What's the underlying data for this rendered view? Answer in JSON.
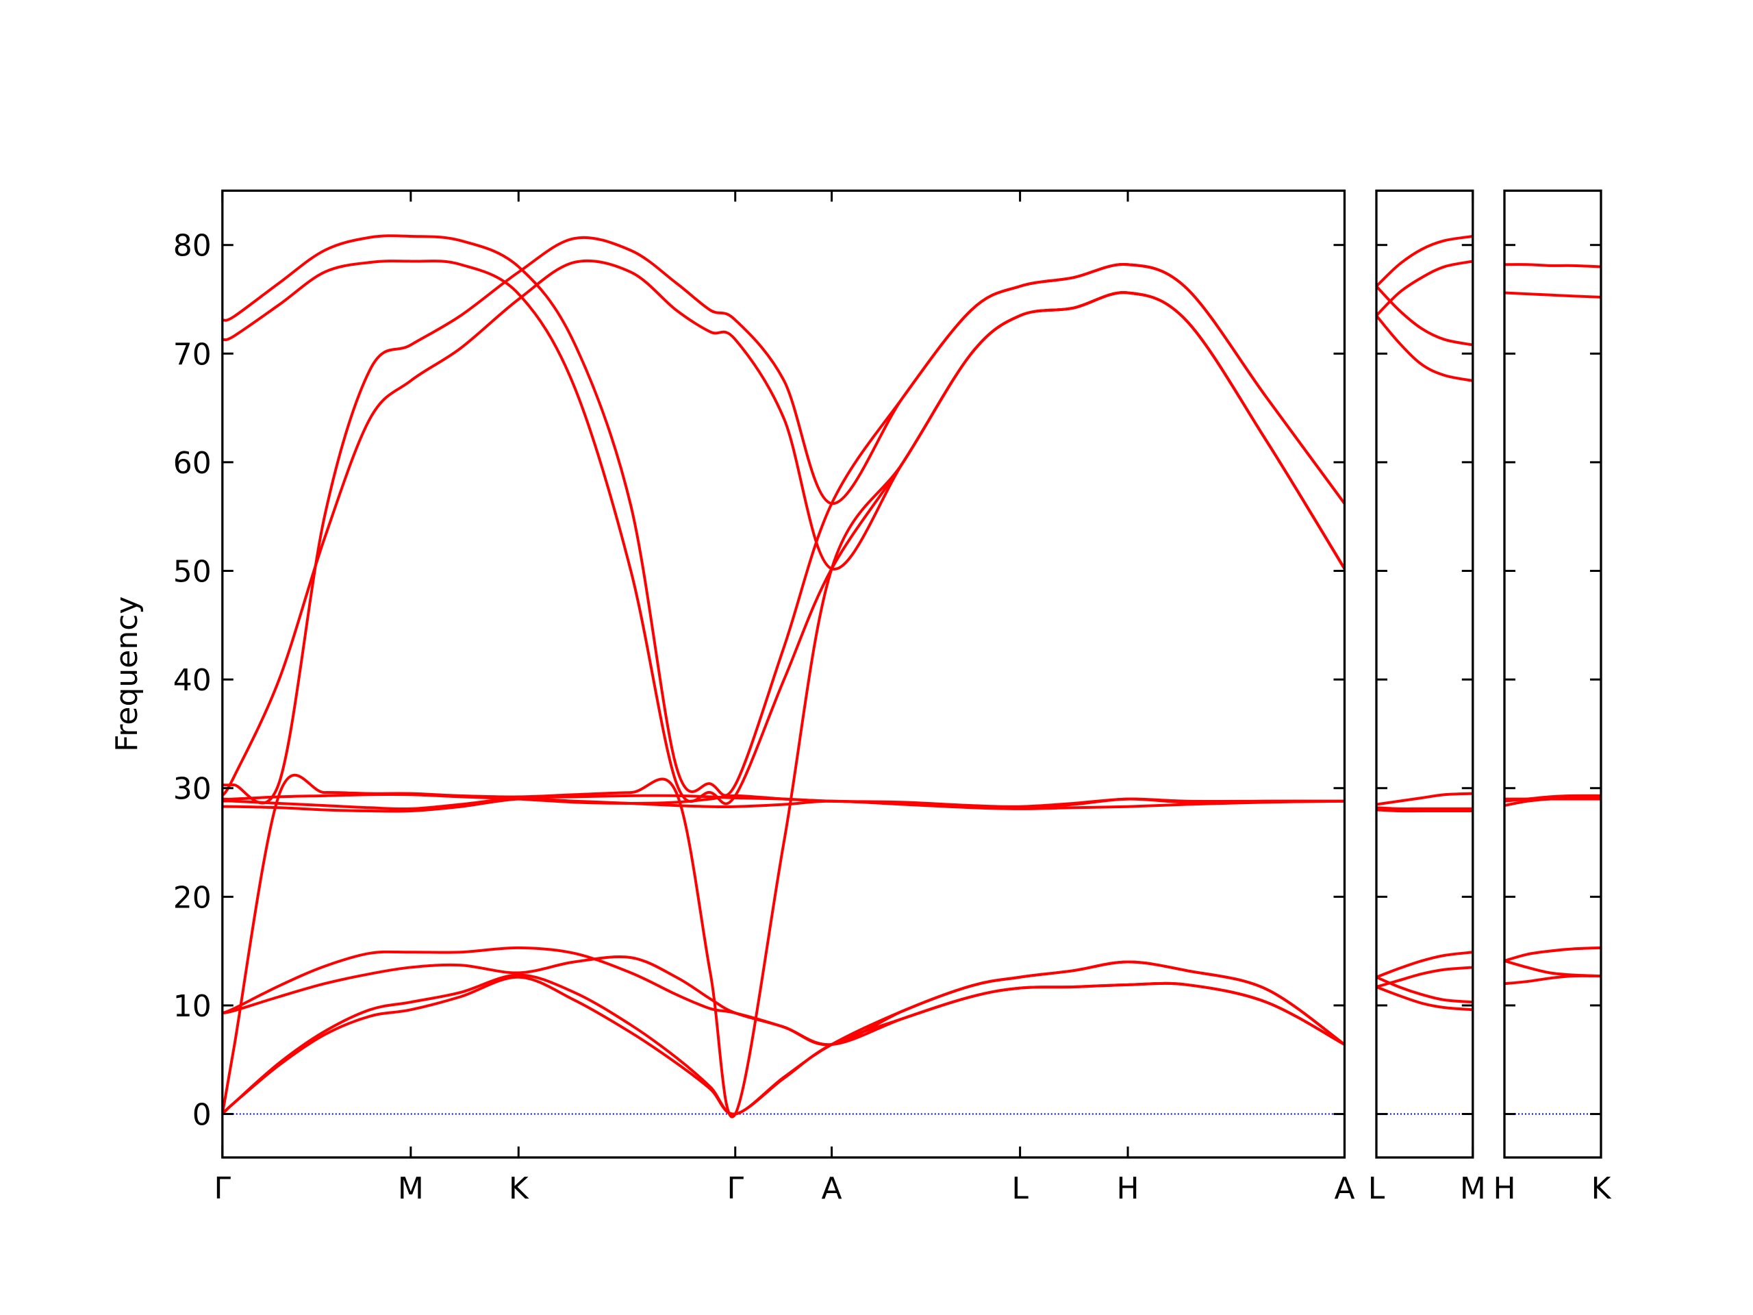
{
  "chart_data": [
    {
      "type": "line",
      "ylabel": "Frequency",
      "color": "#ff0000",
      "hline": 0,
      "hline_color": "#0000ff",
      "xlim": [
        0,
        0.989
      ],
      "ylim": [
        -4,
        85
      ],
      "xticks": [
        {
          "value": 0,
          "label": "Γ"
        },
        {
          "value": 0.166,
          "label": "M"
        },
        {
          "value": 0.261,
          "label": "K"
        },
        {
          "value": 0.452,
          "label": "Γ"
        },
        {
          "value": 0.537,
          "label": "A"
        },
        {
          "value": 0.703,
          "label": "L"
        },
        {
          "value": 0.798,
          "label": "H"
        },
        {
          "value": 0.989,
          "label": "A"
        }
      ],
      "yticks": [
        0,
        10,
        20,
        30,
        40,
        50,
        60,
        70,
        80
      ],
      "x": [
        0,
        0.01,
        0.05,
        0.09,
        0.13,
        0.166,
        0.21,
        0.261,
        0.31,
        0.36,
        0.4,
        0.43,
        0.452,
        0.495,
        0.537,
        0.6,
        0.66,
        0.703,
        0.75,
        0.798,
        0.85,
        0.92,
        0.989
      ],
      "series": [
        {
          "values": [
            30.3,
            30.3,
            30.5,
            55,
            68.5,
            70.8,
            73.5,
            77.5,
            80.6,
            79.5,
            76.5,
            74.0,
            73.1,
            67.5,
            56.2,
            66.0,
            74.0,
            76.2,
            77.0,
            78.2,
            76.0,
            66.0,
            56.2
          ]
        },
        {
          "values": [
            29.3,
            31,
            40,
            53,
            64,
            67.5,
            70.5,
            75,
            78.4,
            77.5,
            74,
            72,
            71.3,
            64,
            50.2,
            60,
            70,
            73.5,
            74.2,
            75.6,
            73,
            62,
            50.2
          ]
        },
        {
          "values": [
            73.1,
            73.4,
            76.5,
            79.5,
            80.7,
            80.8,
            80.4,
            78.0,
            71.0,
            56.0,
            32.0,
            30.4,
            30.3,
            43.0,
            56.2,
            66.0,
            74.0,
            76.2,
            77.0,
            78.2,
            76.0,
            66.0,
            56.2
          ]
        },
        {
          "values": [
            71.3,
            71.6,
            74.5,
            77.5,
            78.4,
            78.5,
            78.2,
            75.5,
            67.0,
            50.0,
            30.5,
            29.6,
            29.3,
            40,
            50.2,
            60,
            70,
            73.5,
            74.2,
            75.6,
            73,
            62,
            50.2
          ]
        },
        {
          "values": [
            0,
            6,
            29.4,
            29.6,
            29.5,
            29.5,
            29.3,
            29.2,
            29.4,
            29.6,
            29.6,
            13,
            0,
            25.1,
            50.2,
            60,
            70,
            73.5,
            74.2,
            75.6,
            73,
            62,
            50.2
          ]
        },
        {
          "values": [
            28.3,
            28.3,
            28.2,
            28.0,
            27.9,
            27.9,
            28.3,
            29.0,
            28.8,
            28.6,
            28.4,
            28.3,
            28.3,
            28.5,
            28.8,
            28.5,
            28.2,
            28.1,
            28.2,
            28.3,
            28.5,
            28.7,
            28.8
          ]
        },
        {
          "values": [
            28.8,
            28.8,
            28.6,
            28.4,
            28.2,
            28.1,
            28.5,
            29.1,
            29.2,
            29.3,
            29.3,
            29.2,
            29.1,
            29.0,
            28.8,
            28.7,
            28.4,
            28.3,
            28.6,
            29.0,
            28.8,
            28.8,
            28.8
          ]
        },
        {
          "values": [
            29.0,
            29.0,
            29.2,
            29.3,
            29.4,
            29.4,
            29.2,
            29.0,
            28.7,
            28.6,
            28.7,
            29.0,
            29.3,
            29.0,
            28.8,
            28.6,
            28.3,
            28.2,
            28.5,
            29.0,
            28.7,
            28.8,
            28.8
          ]
        },
        {
          "values": [
            0,
            1,
            4.5,
            7.3,
            9.0,
            9.6,
            10.8,
            12.6,
            10.5,
            7.5,
            4.7,
            2.3,
            0,
            3.3,
            6.4,
            8.8,
            10.8,
            11.6,
            11.7,
            11.9,
            11.9,
            10.3,
            6.4
          ]
        },
        {
          "values": [
            0,
            1,
            4.7,
            7.6,
            9.6,
            10.3,
            11.2,
            12.8,
            11.2,
            8.2,
            5.2,
            2.5,
            0,
            3.4,
            6.4,
            9.5,
            11.8,
            12.6,
            13.2,
            14.0,
            13.2,
            11.5,
            6.4
          ]
        },
        {
          "values": [
            9.3,
            9.5,
            10.8,
            12.0,
            12.9,
            13.5,
            13.7,
            13.0,
            14.0,
            14.4,
            12.6,
            10.6,
            9.3,
            8.0,
            6.4,
            8.8,
            10.8,
            11.6,
            11.7,
            11.9,
            11.9,
            10.3,
            6.4
          ]
        },
        {
          "values": [
            9.3,
            9.7,
            11.8,
            13.6,
            14.8,
            14.9,
            14.9,
            15.3,
            14.8,
            13.0,
            11.0,
            9.7,
            9.3,
            8.0,
            6.4,
            9.5,
            11.8,
            12.6,
            13.2,
            14.0,
            13.2,
            11.5,
            6.4
          ]
        }
      ]
    },
    {
      "type": "line",
      "color": "#ff0000",
      "hline": 0,
      "hline_color": "#0000ff",
      "xlim": [
        0,
        0.085
      ],
      "ylim": [
        -4,
        85
      ],
      "xticks": [
        {
          "value": 0,
          "label": "L"
        },
        {
          "value": 0.085,
          "label": "M"
        }
      ],
      "x": [
        0,
        0.02,
        0.04,
        0.06,
        0.085
      ],
      "series": [
        {
          "values": [
            76.2,
            78.2,
            79.6,
            80.4,
            80.8
          ]
        },
        {
          "values": [
            73.5,
            75.6,
            77.0,
            78.0,
            78.5
          ]
        },
        {
          "values": [
            76.2,
            74.0,
            72.3,
            71.3,
            70.8
          ]
        },
        {
          "values": [
            73.5,
            71.0,
            69.0,
            68.0,
            67.5
          ]
        },
        {
          "values": [
            28.5,
            28.8,
            29.1,
            29.4,
            29.5
          ]
        },
        {
          "values": [
            28.2,
            28.1,
            28.1,
            28.1,
            28.1
          ]
        },
        {
          "values": [
            28.0,
            27.9,
            27.9,
            27.9,
            27.9
          ]
        },
        {
          "values": [
            12.6,
            13.4,
            14.1,
            14.6,
            14.9
          ]
        },
        {
          "values": [
            11.7,
            12.3,
            12.9,
            13.3,
            13.5
          ]
        },
        {
          "values": [
            12.6,
            11.7,
            11.0,
            10.5,
            10.3
          ]
        },
        {
          "values": [
            11.7,
            10.9,
            10.2,
            9.8,
            9.6
          ]
        }
      ]
    },
    {
      "type": "line",
      "color": "#ff0000",
      "hline": 0,
      "hline_color": "#0000ff",
      "xlim": [
        0,
        0.085
      ],
      "ylim": [
        -4,
        85
      ],
      "xticks": [
        {
          "value": 0,
          "label": "H"
        },
        {
          "value": 0.085,
          "label": "K"
        }
      ],
      "x": [
        0,
        0.02,
        0.04,
        0.06,
        0.085
      ],
      "series": [
        {
          "values": [
            78.2,
            78.2,
            78.1,
            78.1,
            78.0
          ]
        },
        {
          "values": [
            75.6,
            75.5,
            75.4,
            75.3,
            75.2
          ]
        },
        {
          "values": [
            28.4,
            28.8,
            29.0,
            29.1,
            29.2
          ]
        },
        {
          "values": [
            29.0,
            29.0,
            29.0,
            29.0,
            29.0
          ]
        },
        {
          "values": [
            28.8,
            29.0,
            29.2,
            29.3,
            29.3
          ]
        },
        {
          "values": [
            14.1,
            14.7,
            15.0,
            15.2,
            15.3
          ]
        },
        {
          "values": [
            14.1,
            13.5,
            13.0,
            12.8,
            12.7
          ]
        },
        {
          "values": [
            12.0,
            12.2,
            12.5,
            12.7,
            12.7
          ]
        }
      ]
    }
  ]
}
